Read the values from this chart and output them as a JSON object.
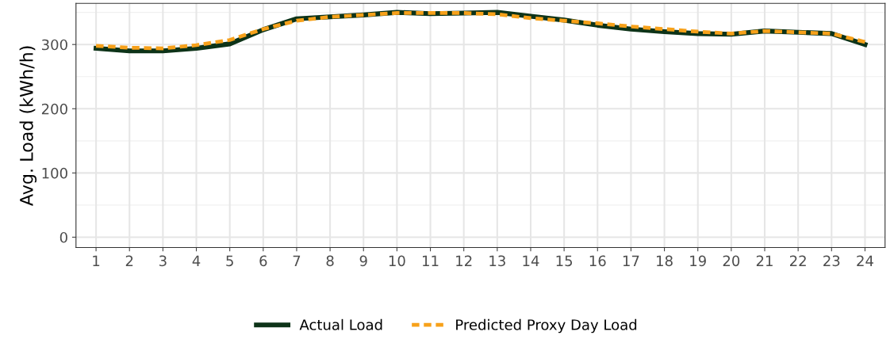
{
  "chart_data": {
    "type": "line",
    "ylabel": "Avg. Load (kWh/h)",
    "categories": [
      "1",
      "2",
      "3",
      "4",
      "5",
      "6",
      "7",
      "8",
      "9",
      "10",
      "11",
      "12",
      "13",
      "14",
      "15",
      "16",
      "17",
      "18",
      "19",
      "20",
      "21",
      "22",
      "23",
      "24"
    ],
    "series": [
      {
        "name": "Actual Load",
        "color": "#0d3318",
        "line_style": "solid",
        "values": [
          294,
          290,
          290,
          294,
          301,
          323,
          340,
          343,
          346,
          350,
          348,
          349,
          350,
          344,
          338,
          330,
          324,
          320,
          317,
          316,
          321,
          319,
          317,
          300
        ]
      },
      {
        "name": "Predicted Proxy Day Load",
        "color": "#f7a11a",
        "line_style": "dashed",
        "values": [
          298,
          295,
          294,
          299,
          307,
          324,
          337,
          343,
          346,
          349,
          349,
          349,
          347,
          341,
          337,
          333,
          328,
          324,
          320,
          317,
          321,
          319,
          317,
          304
        ]
      }
    ],
    "ylim": [
      -16,
      364
    ],
    "yticks": [
      0,
      100,
      200,
      300
    ],
    "grid": true,
    "legend": "bottom",
    "marker": "none"
  }
}
